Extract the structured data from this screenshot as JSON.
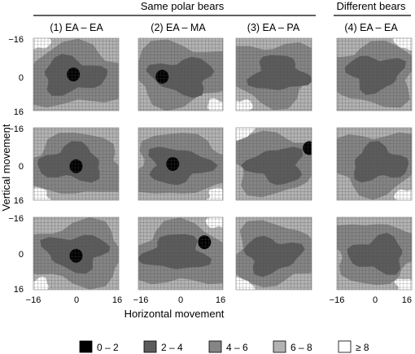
{
  "chart_data": {
    "type": "heatmap",
    "group_headers": [
      "Same polar bears",
      "Different bears"
    ],
    "column_titles": [
      "(1) EA – EA",
      "(2) EA – MA",
      "(3) EA – PA",
      "(4) EA – EA"
    ],
    "xlabel": "Horizontal movement",
    "ylabel": "Vertical movement",
    "xlim": [
      -16,
      16
    ],
    "ylim": [
      -16,
      16
    ],
    "x_ticks": [
      "−16",
      "0",
      "16"
    ],
    "y_ticks": [
      "−16",
      "0",
      "16"
    ],
    "grid": true,
    "legend_position": "bottom",
    "legend": [
      {
        "label": "0 – 2",
        "color": "#000000"
      },
      {
        "label": "2 – 4",
        "color": "#5c5c5c"
      },
      {
        "label": "4 – 6",
        "color": "#858585"
      },
      {
        "label": "6 – 8",
        "color": "#b3b3b3"
      },
      {
        "label": "≥ 8",
        "color": "#ffffff"
      }
    ],
    "panels": [
      {
        "row": 0,
        "col": 0,
        "min_level": "0 – 2",
        "min_x": -1,
        "min_y": 0
      },
      {
        "row": 0,
        "col": 1,
        "min_level": "0 – 2",
        "min_x": -7,
        "min_y": 1
      },
      {
        "row": 0,
        "col": 2,
        "min_level": "2 – 4"
      },
      {
        "row": 0,
        "col": 3,
        "min_level": "2 – 4"
      },
      {
        "row": 1,
        "col": 0,
        "min_level": "0 – 2",
        "min_x": 0,
        "min_y": 1
      },
      {
        "row": 1,
        "col": 1,
        "min_level": "0 – 2",
        "min_x": -3,
        "min_y": 0
      },
      {
        "row": 1,
        "col": 2,
        "min_level": "0 – 2",
        "min_x": 15,
        "min_y": -7
      },
      {
        "row": 1,
        "col": 3,
        "min_level": "2 – 4"
      },
      {
        "row": 2,
        "col": 0,
        "min_level": "0 – 2",
        "min_x": 0,
        "min_y": 1
      },
      {
        "row": 2,
        "col": 1,
        "min_level": "0 – 2",
        "min_x": 9,
        "min_y": -5
      },
      {
        "row": 2,
        "col": 2,
        "min_level": "2 – 4"
      },
      {
        "row": 2,
        "col": 3,
        "min_level": "2 – 4"
      }
    ]
  }
}
